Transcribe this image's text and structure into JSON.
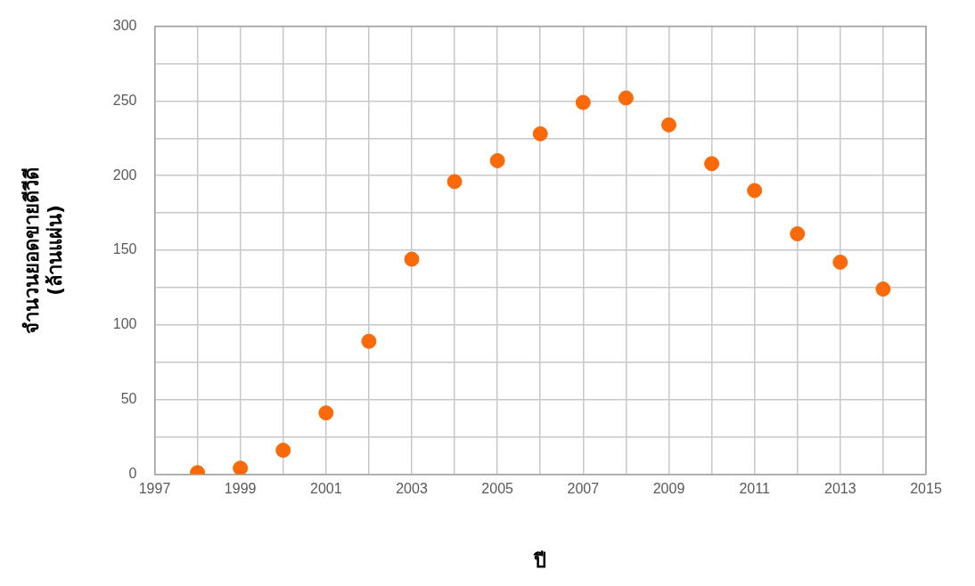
{
  "chart_data": {
    "type": "scatter",
    "xlabel": "ปี",
    "ylabel": "จำนวนยอดขายดีวีดี\n(ล้านแผ่น)",
    "x": [
      1998,
      1999,
      2000,
      2001,
      2002,
      2003,
      2004,
      2005,
      2006,
      2007,
      2008,
      2009,
      2010,
      2011,
      2012,
      2013,
      2014
    ],
    "series": [
      {
        "color": "#fa6a0a",
        "values": [
          1,
          4,
          16,
          41,
          89,
          144,
          196,
          210,
          228,
          249,
          252,
          234,
          208,
          190,
          161,
          142,
          124
        ]
      }
    ],
    "xlim": [
      1997,
      2015
    ],
    "xticks": [
      1997,
      {
        "value": 1998,
        "label": null
      },
      1999,
      {
        "value": 2000,
        "label": null
      },
      2001,
      {
        "value": 2002,
        "label": null
      },
      2003,
      {
        "value": 2004,
        "label": null
      },
      2005,
      {
        "value": 2006,
        "label": null
      },
      2007,
      {
        "value": 2008,
        "label": null
      },
      2009,
      {
        "value": 2010,
        "label": null
      },
      2011,
      {
        "value": 2012,
        "label": null
      },
      2013,
      {
        "value": 2014,
        "label": null
      },
      2015
    ],
    "ylim": [
      0,
      300
    ],
    "yticks": [
      0,
      {
        "value": 25,
        "label": null
      },
      50,
      {
        "value": 75,
        "label": null
      },
      100,
      {
        "value": 125,
        "label": null
      },
      150,
      {
        "value": 175,
        "label": null
      },
      200,
      {
        "value": 225,
        "label": null
      },
      250,
      {
        "value": 275,
        "label": null
      },
      300
    ],
    "grid": true,
    "marker": "circle",
    "legend": false
  }
}
